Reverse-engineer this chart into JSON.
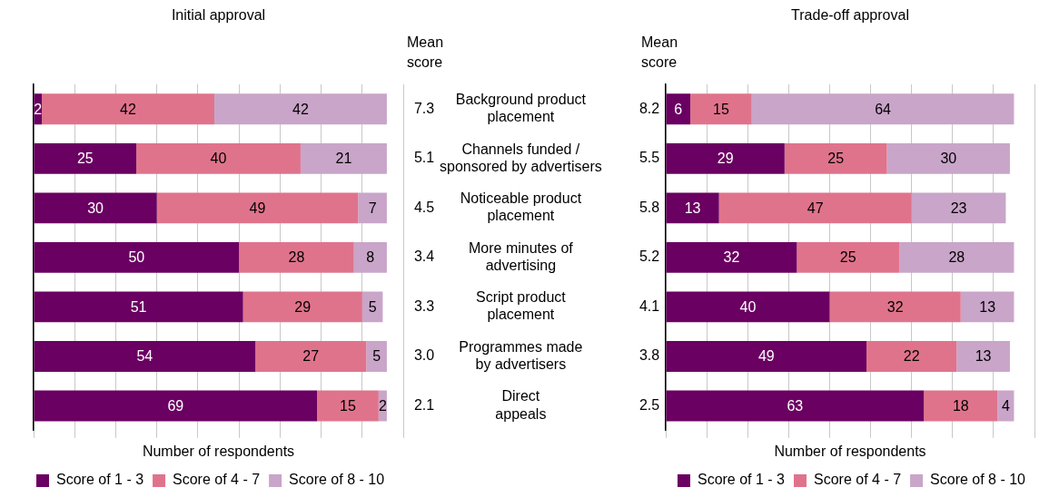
{
  "chart_data": [
    {
      "type": "bar",
      "orientation": "horizontal",
      "stacked": true,
      "title": "Initial approval",
      "xlabel": "Number of respondents",
      "categories": [
        "Background product placement",
        "Channels funded / sponsored by advertisers",
        "Noticeable product placement",
        "More minutes of advertising",
        "Script product placement",
        "Programmes made by advertisers",
        "Direct appeals"
      ],
      "series": [
        {
          "name": "Score of 1 - 3",
          "color": "#6a0061",
          "values": [
            2,
            25,
            30,
            50,
            51,
            54,
            69
          ]
        },
        {
          "name": "Score of 4 - 7",
          "color": "#e0738c",
          "values": [
            42,
            40,
            49,
            28,
            29,
            27,
            15
          ]
        },
        {
          "name": "Score of 8 - 10",
          "color": "#c9a5c9",
          "values": [
            42,
            21,
            7,
            8,
            5,
            5,
            2
          ]
        }
      ],
      "xlim": [
        0,
        90
      ],
      "xticks": [
        {
          "value": 0,
          "label": null
        },
        {
          "value": 10,
          "label": null
        },
        {
          "value": 20,
          "label": null
        },
        {
          "value": 30,
          "label": null
        },
        {
          "value": 40,
          "label": null
        },
        {
          "value": 50,
          "label": null
        },
        {
          "value": 60,
          "label": null
        },
        {
          "value": 70,
          "label": null
        },
        {
          "value": 80,
          "label": null
        }
      ],
      "grid": "x",
      "legend": "bottom left",
      "tick_labels": "y",
      "data_labels": true,
      "annotations": [
        "Mean score",
        "7.3",
        "5.1",
        "4.5",
        "3.4",
        "3.3",
        "3.0",
        "2.1"
      ]
    },
    {
      "type": "bar",
      "orientation": "horizontal",
      "stacked": true,
      "title": "Trade-off approval",
      "xlabel": "Number of respondents",
      "categories": [
        null,
        null,
        null,
        null,
        null,
        null,
        null
      ],
      "series": [
        {
          "name": "Score of 1 - 3",
          "color": "#6a0061",
          "values": [
            6,
            29,
            13,
            32,
            40,
            49,
            63
          ]
        },
        {
          "name": "Score of 4 - 7",
          "color": "#e0738c",
          "values": [
            15,
            25,
            47,
            25,
            32,
            22,
            18
          ]
        },
        {
          "name": "Score of 8 - 10",
          "color": "#c9a5c9",
          "values": [
            64,
            30,
            23,
            28,
            13,
            13,
            4
          ]
        }
      ],
      "xlim": [
        0,
        90
      ],
      "xticks": [
        {
          "value": 0,
          "label": null
        },
        {
          "value": 10,
          "label": null
        },
        {
          "value": 20,
          "label": null
        },
        {
          "value": 30,
          "label": null
        },
        {
          "value": 40,
          "label": null
        },
        {
          "value": 50,
          "label": null
        },
        {
          "value": 60,
          "label": null
        },
        {
          "value": 70,
          "label": null
        },
        {
          "value": 80,
          "label": null
        }
      ],
      "grid": "x",
      "legend": "bottom right",
      "tick_labels": false,
      "data_labels": true,
      "annotations": [
        "Mean score",
        "8.2",
        "5.5",
        "5.8",
        "5.2",
        "4.1",
        "3.8",
        "2.5"
      ]
    }
  ]
}
